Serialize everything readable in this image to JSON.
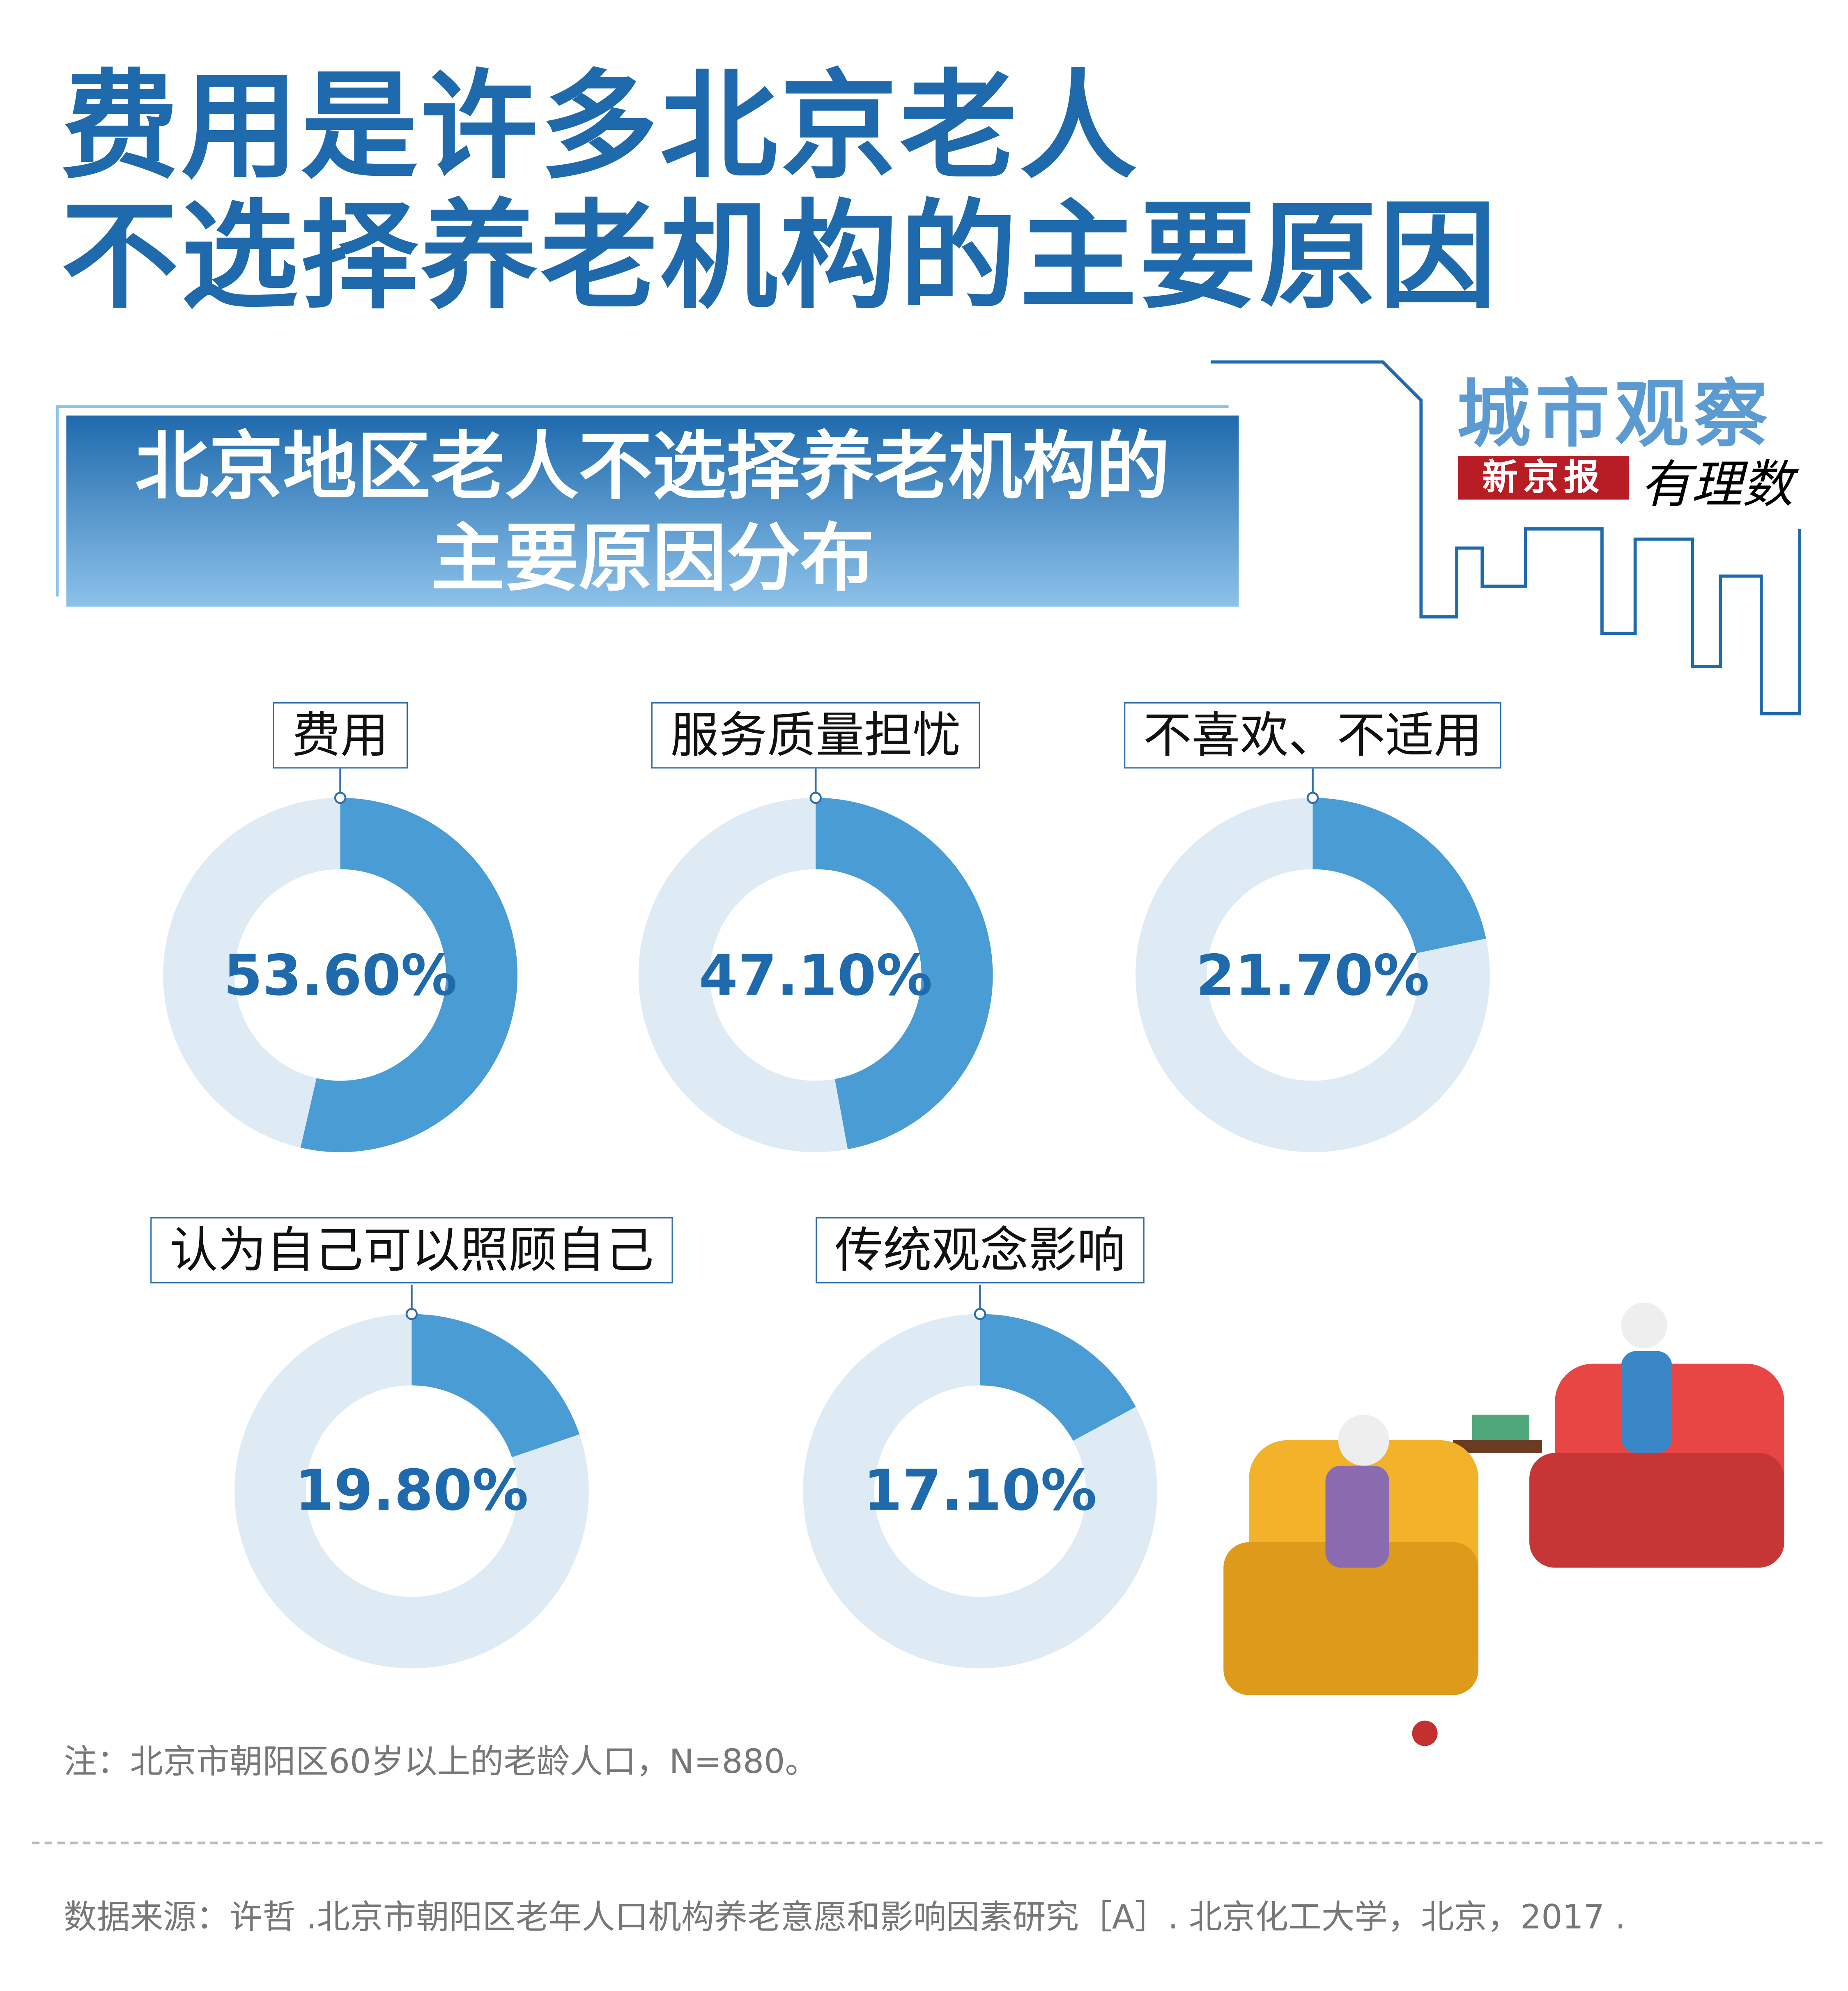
{
  "title_lines": [
    "费用是许多北京老人",
    "不选择养老机构的主要原因"
  ],
  "subtitle_lines": [
    "北京地区老人不选择养老机构的",
    "主要原因分布"
  ],
  "branding": {
    "column": "城市观察",
    "newspaper": "新京报",
    "brand": "有理数"
  },
  "colors": {
    "title": "#1f6aad",
    "filled": "#4a9cd4",
    "track": "#deebf5",
    "logo_red": "#b81c24"
  },
  "chart_data": {
    "type": "pie",
    "subtype": "donut",
    "title": "北京地区老人不选择养老机构的主要原因分布",
    "unit": "%",
    "categories": [
      "费用",
      "服务质量担忧",
      "不喜欢、不适用",
      "认为自己可以照顾自己",
      "传统观念影响"
    ],
    "values": [
      53.6,
      47.1,
      21.7,
      19.8,
      17.1
    ],
    "labels": [
      "53.60%",
      "47.10%",
      "21.70%",
      "19.80%",
      "17.10%"
    ]
  },
  "note": "注：北京市朝阳区60岁以上的老龄人口，N=880。",
  "source": "数据来源：许哲 .北京市朝阳区老年人口机构养老意愿和影响因素研究［A］. 北京化工大学，北京，2017 ."
}
